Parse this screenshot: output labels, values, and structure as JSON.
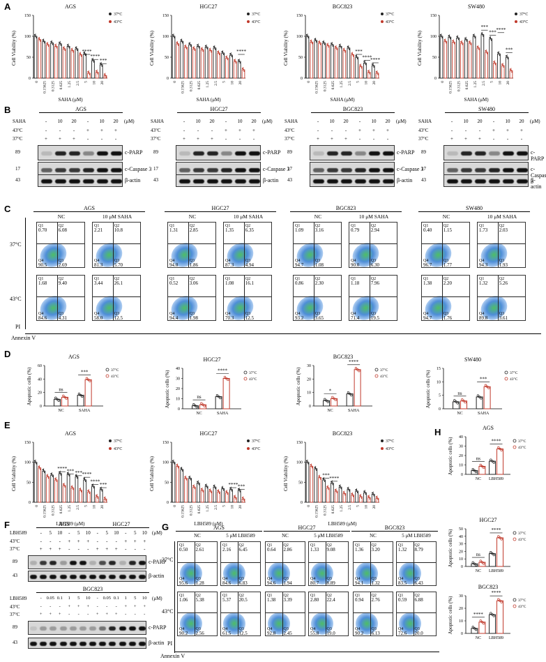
{
  "colors": {
    "c37": "#222222",
    "c43": "#c0392b"
  },
  "panel_letters": [
    "A",
    "B",
    "C",
    "D",
    "E",
    "F",
    "G",
    "H"
  ],
  "legend": {
    "t37": "37°C",
    "t43": "43°C"
  },
  "sig": {
    "s4": "****",
    "s3": "***",
    "s1": "*",
    "ns": "ns"
  },
  "A": {
    "ylabel": "Cell Viability (%)",
    "xlabel": "SAHA (μM)",
    "ticks": [
      "0",
      "0.15625",
      "0.3125",
      "0.625",
      "1.25",
      "2.5",
      "5",
      "10",
      "20"
    ],
    "yticks": [
      "0",
      "50",
      "100",
      "150"
    ],
    "titles": [
      "AGS",
      "HGC27",
      "BGC823",
      "SW480"
    ]
  },
  "E": {
    "ylabel": "Cell Viability (%)",
    "xlabel": "LBH589 (μM)",
    "ticks": [
      "0",
      "0.15625",
      "0.3125",
      "0.625",
      "1.25",
      "2.5",
      "5",
      "10",
      "20"
    ],
    "yticks": [
      "0",
      "50",
      "100",
      "150"
    ],
    "titles": [
      "AGS",
      "HGC27",
      "BGC823"
    ]
  },
  "B": {
    "titles": [
      "AGS",
      "HGC27",
      "BGC823",
      "SW480"
    ],
    "saha_row": [
      "SAHA",
      "-",
      "10",
      "20",
      "-",
      "10",
      "20",
      "(μM)"
    ],
    "t43_row": [
      "43°C",
      "-",
      "-",
      "-",
      "+",
      "+",
      "+"
    ],
    "t37_row": [
      "37°C",
      "+",
      "+",
      "+",
      "-",
      "-",
      "-"
    ],
    "markers": [
      "89",
      "17",
      "43"
    ],
    "bands": [
      "c-PARP",
      "c-Caspase 3",
      "β-actin"
    ]
  },
  "C": {
    "titles": [
      "AGS",
      "HGC27",
      "BGC823",
      "SW480"
    ],
    "cond": [
      "NC",
      "10 μM SAHA"
    ],
    "rows": [
      "37°C",
      "43°C"
    ],
    "pi": "PI",
    "annexin": "Annexin V",
    "quads": [
      [
        [
          "0.70",
          "6.08",
          "90.5",
          "2.69"
        ],
        [
          "2.21",
          "10.8",
          "81.3",
          "5.70"
        ],
        [
          "1.31",
          "2.85",
          "94.0",
          "1.86"
        ],
        [
          "1.35",
          "6.35",
          "87.3",
          "4.94"
        ],
        [
          "1.09",
          "3.16",
          "94.7",
          "1.08"
        ],
        [
          "0.79",
          "2.94",
          "90.0",
          "6.30"
        ],
        [
          "0.40",
          "1.15",
          "96.7",
          "1.77"
        ],
        [
          "1.73",
          "2.03",
          "94.3",
          "1.93"
        ]
      ],
      [
        [
          "1.68",
          "9.40",
          "84.6",
          "4.31"
        ],
        [
          "3.44",
          "26.1",
          "58.0",
          "12.5"
        ],
        [
          "0.52",
          "3.06",
          "94.4",
          "1.98"
        ],
        [
          "1.08",
          "16.1",
          "70.3",
          "12.5"
        ],
        [
          "0.86",
          "2.30",
          "93.2",
          "3.65"
        ],
        [
          "1.18",
          "7.96",
          "71.4",
          "19.5"
        ],
        [
          "1.38",
          "2.20",
          "94.7",
          "1.76"
        ],
        [
          "1.32",
          "5.26",
          "89.8",
          "3.61"
        ]
      ]
    ]
  },
  "D": {
    "ylabel": "Apoptotic cells (%)",
    "titles": [
      "AGS",
      "HGC27",
      "BGC823",
      "SW480"
    ],
    "cats": [
      "NC",
      "SAHA"
    ],
    "yticks": [
      [
        "0",
        "20",
        "40",
        "60"
      ],
      [
        "0",
        "10",
        "20",
        "30",
        "40"
      ],
      [
        "0",
        "10",
        "20",
        "30"
      ],
      [
        "0",
        "5",
        "10",
        "15"
      ]
    ]
  },
  "F": {
    "titles": [
      "AGS",
      "HGC27",
      "BGC823"
    ],
    "row1": [
      "LBH589",
      "-",
      "5",
      "10",
      "-",
      "5",
      "10",
      "-",
      "5",
      "10",
      "-",
      "5",
      "10",
      "(μM)"
    ],
    "row43a": [
      "43°C",
      "-",
      "-",
      "-",
      "+",
      "+",
      "+",
      "-",
      "-",
      "-",
      "+",
      "+",
      "+"
    ],
    "row37a": [
      "37°C",
      "+",
      "+",
      "+",
      "-",
      "-",
      "-",
      "+",
      "+",
      "+",
      "-",
      "-",
      "-"
    ],
    "row2": [
      "LBH589",
      "-",
      "0.05",
      "0.1",
      "1",
      "5",
      "10",
      "-",
      "0.05",
      "0.1",
      "1",
      "5",
      "10",
      "(μM)"
    ],
    "markers": [
      "89",
      "43"
    ],
    "bands": [
      "c-PARP",
      "β-actin"
    ]
  },
  "G": {
    "titles": [
      "AGS",
      "HGC27",
      "BGC823"
    ],
    "cond": [
      "NC",
      "5 μM LBH589"
    ],
    "rows": [
      "37°C",
      "43°C"
    ],
    "pi": "PI",
    "annexin": "Annexin V",
    "quads": [
      [
        [
          "0.50",
          "2.61",
          "95.6",
          "1.28"
        ],
        [
          "2.16",
          "6.45",
          "84.6",
          "6.83"
        ],
        [
          "0.64",
          "2.86",
          "94.6",
          "1.94"
        ],
        [
          "1.33",
          "9.08",
          "80.7",
          "8.89"
        ],
        [
          "1.36",
          "3.20",
          "94.1",
          "1.32"
        ],
        [
          "1.32",
          "8.79",
          "83.5",
          "6.43"
        ]
      ],
      [
        [
          "1.06",
          "5.38",
          "90.2",
          "2.56"
        ],
        [
          "5.37",
          "20.5",
          "61.5",
          "12.5"
        ],
        [
          "1.38",
          "3.39",
          "92.8",
          "2.45"
        ],
        [
          "2.80",
          "22.4",
          "55.8",
          "19.0"
        ],
        [
          "0.94",
          "2.76",
          "90.2",
          "6.13"
        ],
        [
          "0.59",
          "6.88",
          "72.6",
          "20.0"
        ]
      ]
    ]
  },
  "H": {
    "ylabel": "Apoptotic cells (%)",
    "titles": [
      "AGS",
      "HGC27",
      "BGC823"
    ],
    "cats": [
      "NC",
      "LBH589"
    ],
    "yticks": [
      [
        "0",
        "10",
        "20",
        "30",
        "40"
      ],
      [
        "0",
        "10",
        "20",
        "30",
        "40",
        "50"
      ],
      [
        "0",
        "10",
        "20",
        "30"
      ]
    ]
  },
  "chart_data": [
    {
      "type": "bar",
      "title": "AGS",
      "panel": "A",
      "ylabel": "Cell Viability (%)",
      "xlabel": "SAHA (μM)",
      "ylim": [
        0,
        150
      ],
      "categories": [
        "0",
        "0.15625",
        "0.3125",
        "0.625",
        "1.25",
        "2.5",
        "5",
        "10",
        "20"
      ],
      "series": [
        {
          "name": "37°C",
          "values": [
            100,
            88,
            84,
            82,
            76,
            70,
            58,
            42,
            32
          ]
        },
        {
          "name": "43°C",
          "values": [
            92,
            80,
            76,
            70,
            66,
            56,
            12,
            14,
            6
          ]
        }
      ]
    },
    {
      "type": "bar",
      "title": "HGC27",
      "panel": "A",
      "ylabel": "Cell Viability (%)",
      "xlabel": "SAHA (μM)",
      "ylim": [
        0,
        150
      ],
      "categories": [
        "0",
        "0.15625",
        "0.3125",
        "0.625",
        "1.25",
        "2.5",
        "5",
        "10",
        "20"
      ],
      "series": [
        {
          "name": "37°C",
          "values": [
            100,
            88,
            80,
            76,
            74,
            72,
            60,
            55,
            40
          ]
        },
        {
          "name": "43°C",
          "values": [
            82,
            74,
            70,
            68,
            66,
            60,
            48,
            40,
            20
          ]
        }
      ]
    },
    {
      "type": "bar",
      "title": "BGC823",
      "panel": "A",
      "ylabel": "Cell Viability (%)",
      "xlabel": "SAHA (μM)",
      "ylim": [
        0,
        150
      ],
      "categories": [
        "0",
        "0.15625",
        "0.3125",
        "0.625",
        "1.25",
        "2.5",
        "5",
        "10",
        "20"
      ],
      "series": [
        {
          "name": "37°C",
          "values": [
            100,
            90,
            84,
            80,
            76,
            72,
            50,
            36,
            30
          ]
        },
        {
          "name": "43°C",
          "values": [
            86,
            84,
            78,
            72,
            66,
            56,
            28,
            14,
            12
          ]
        }
      ]
    },
    {
      "type": "bar",
      "title": "SW480",
      "panel": "A",
      "ylabel": "Cell Viability (%)",
      "xlabel": "SAHA (μM)",
      "ylim": [
        0,
        150
      ],
      "categories": [
        "0",
        "0.15625",
        "0.3125",
        "0.625",
        "1.25",
        "2.5",
        "5",
        "10",
        "20"
      ],
      "series": [
        {
          "name": "37°C",
          "values": [
            100,
            98,
            96,
            92,
            100,
            104,
            94,
            58,
            50
          ]
        },
        {
          "name": "43°C",
          "values": [
            88,
            86,
            84,
            84,
            72,
            62,
            36,
            30,
            18
          ]
        }
      ]
    },
    {
      "type": "bar",
      "title": "AGS",
      "panel": "D",
      "ylabel": "Apoptotic cells (%)",
      "ylim": [
        0,
        60
      ],
      "categories": [
        "NC",
        "SAHA"
      ],
      "series": [
        {
          "name": "37°C",
          "values": [
            10,
            16
          ]
        },
        {
          "name": "43°C",
          "values": [
            13,
            39
          ]
        }
      ]
    },
    {
      "type": "bar",
      "title": "HGC27",
      "panel": "D",
      "ylabel": "Apoptotic cells (%)",
      "ylim": [
        0,
        40
      ],
      "categories": [
        "NC",
        "SAHA"
      ],
      "series": [
        {
          "name": "37°C",
          "values": [
            3,
            12
          ]
        },
        {
          "name": "43°C",
          "values": [
            4,
            30
          ]
        }
      ]
    },
    {
      "type": "bar",
      "title": "BGC823",
      "panel": "D",
      "ylabel": "Apoptotic cells (%)",
      "ylim": [
        0,
        30
      ],
      "categories": [
        "NC",
        "SAHA"
      ],
      "series": [
        {
          "name": "37°C",
          "values": [
            4,
            9
          ]
        },
        {
          "name": "43°C",
          "values": [
            5.5,
            27
          ]
        }
      ]
    },
    {
      "type": "bar",
      "title": "SW480",
      "panel": "D",
      "ylabel": "Apoptotic cells (%)",
      "ylim": [
        0,
        15
      ],
      "categories": [
        "NC",
        "SAHA"
      ],
      "series": [
        {
          "name": "37°C",
          "values": [
            2.6,
            4.4
          ]
        },
        {
          "name": "43°C",
          "values": [
            2.9,
            8.2
          ]
        }
      ]
    },
    {
      "type": "bar",
      "title": "AGS",
      "panel": "E",
      "ylabel": "Cell Viability (%)",
      "xlabel": "LBH589 (μM)",
      "ylim": [
        0,
        150
      ],
      "categories": [
        "0",
        "0.15625",
        "0.3125",
        "0.625",
        "1.25",
        "2.5",
        "5",
        "10",
        "20"
      ],
      "series": [
        {
          "name": "37°C",
          "values": [
            100,
            78,
            68,
            72,
            70,
            64,
            56,
            40,
            32
          ]
        },
        {
          "name": "43°C",
          "values": [
            86,
            64,
            56,
            42,
            36,
            30,
            26,
            14,
            8
          ]
        }
      ]
    },
    {
      "type": "bar",
      "title": "HGC27",
      "panel": "E",
      "ylabel": "Cell Viability (%)",
      "xlabel": "LBH589 (μM)",
      "ylim": [
        0,
        150
      ],
      "categories": [
        "0",
        "0.15625",
        "0.3125",
        "0.625",
        "1.25",
        "2.5",
        "5",
        "10",
        "20"
      ],
      "series": [
        {
          "name": "37°C",
          "values": [
            100,
            82,
            60,
            48,
            40,
            38,
            34,
            32,
            30
          ]
        },
        {
          "name": "43°C",
          "values": [
            90,
            60,
            38,
            30,
            28,
            26,
            24,
            12,
            8
          ]
        }
      ]
    },
    {
      "type": "bar",
      "title": "BGC823",
      "panel": "E",
      "ylabel": "Cell Viability (%)",
      "xlabel": "LBH589 (μM)",
      "ylim": [
        0,
        150
      ],
      "categories": [
        "0",
        "0.15625",
        "0.3125",
        "0.625",
        "1.25",
        "2.5",
        "5",
        "10",
        "20"
      ],
      "series": [
        {
          "name": "37°C",
          "values": [
            100,
            84,
            56,
            48,
            38,
            32,
            28,
            24,
            20
          ]
        },
        {
          "name": "43°C",
          "values": [
            90,
            62,
            36,
            28,
            22,
            18,
            14,
            12,
            10
          ]
        }
      ]
    },
    {
      "type": "bar",
      "title": "AGS",
      "panel": "H",
      "ylabel": "Apoptotic cells (%)",
      "ylim": [
        0,
        40
      ],
      "categories": [
        "NC",
        "LBH589"
      ],
      "series": [
        {
          "name": "37°C",
          "values": [
            4,
            14
          ]
        },
        {
          "name": "43°C",
          "values": [
            8.5,
            27
          ]
        }
      ]
    },
    {
      "type": "bar",
      "title": "HGC27",
      "panel": "H",
      "ylabel": "Apoptotic cells (%)",
      "ylim": [
        0,
        50
      ],
      "categories": [
        "NC",
        "LBH589"
      ],
      "series": [
        {
          "name": "37°C",
          "values": [
            3.5,
            17
          ]
        },
        {
          "name": "43°C",
          "values": [
            5.5,
            38
          ]
        }
      ]
    },
    {
      "type": "bar",
      "title": "BGC823",
      "panel": "H",
      "ylabel": "Apoptotic cells (%)",
      "ylim": [
        0,
        30
      ],
      "categories": [
        "NC",
        "LBH589"
      ],
      "series": [
        {
          "name": "37°C",
          "values": [
            4,
            15
          ]
        },
        {
          "name": "43°C",
          "values": [
            9,
            26
          ]
        }
      ]
    }
  ]
}
